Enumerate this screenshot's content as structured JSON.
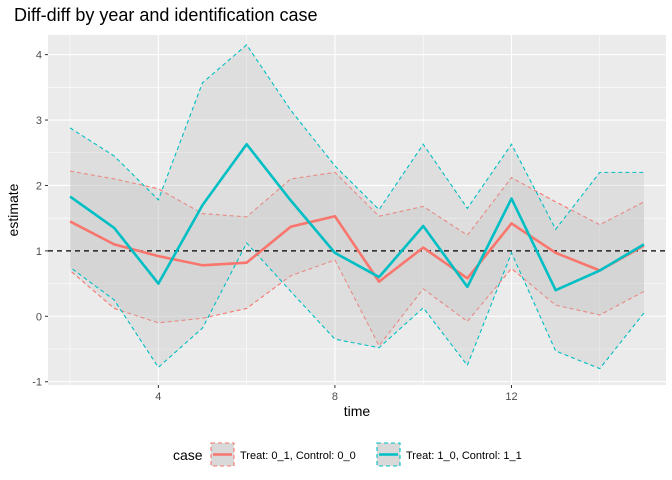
{
  "chart_data": {
    "type": "line",
    "title": "Diff-diff by year and identification case",
    "xlabel": "time",
    "ylabel": "estimate",
    "xlim": [
      1.5,
      15.5
    ],
    "ylim": [
      -1.05,
      4.3
    ],
    "x_ticks": [
      4,
      8,
      12
    ],
    "y_ticks": [
      -1,
      0,
      1,
      2,
      3,
      4
    ],
    "grid": true,
    "reference_line": {
      "y": 1,
      "style": "dashed",
      "color": "#000000"
    },
    "legend": {
      "title": "case",
      "position": "bottom"
    },
    "x": [
      2,
      3,
      4,
      5,
      6,
      7,
      8,
      9,
      10,
      11,
      12,
      13,
      14,
      15
    ],
    "series": [
      {
        "name": "Treat: 0_1, Control: 0_0",
        "color": "#F8766D",
        "values": [
          1.45,
          1.1,
          0.92,
          0.78,
          0.82,
          1.37,
          1.53,
          0.53,
          1.05,
          0.58,
          1.42,
          0.97,
          0.7,
          1.08
        ],
        "lower": [
          0.7,
          0.12,
          -0.1,
          -0.03,
          0.12,
          0.62,
          0.86,
          -0.45,
          0.42,
          -0.08,
          0.73,
          0.17,
          0.02,
          0.38
        ],
        "upper": [
          2.22,
          2.1,
          1.95,
          1.57,
          1.52,
          2.1,
          2.2,
          1.53,
          1.68,
          1.24,
          2.12,
          1.75,
          1.4,
          1.75
        ]
      },
      {
        "name": "Treat: 1_0, Control: 1_1",
        "color": "#00BFC4",
        "values": [
          1.83,
          1.35,
          0.5,
          1.7,
          2.63,
          1.77,
          0.97,
          0.6,
          1.38,
          0.45,
          1.8,
          0.4,
          0.7,
          1.1
        ],
        "lower": [
          0.75,
          0.25,
          -0.78,
          -0.18,
          1.12,
          0.38,
          -0.35,
          -0.48,
          0.13,
          -0.75,
          0.97,
          -0.53,
          -0.8,
          0.05
        ],
        "upper": [
          2.88,
          2.45,
          1.78,
          3.57,
          4.15,
          3.15,
          2.3,
          1.63,
          2.63,
          1.65,
          2.63,
          1.33,
          2.2,
          2.2
        ]
      }
    ]
  }
}
